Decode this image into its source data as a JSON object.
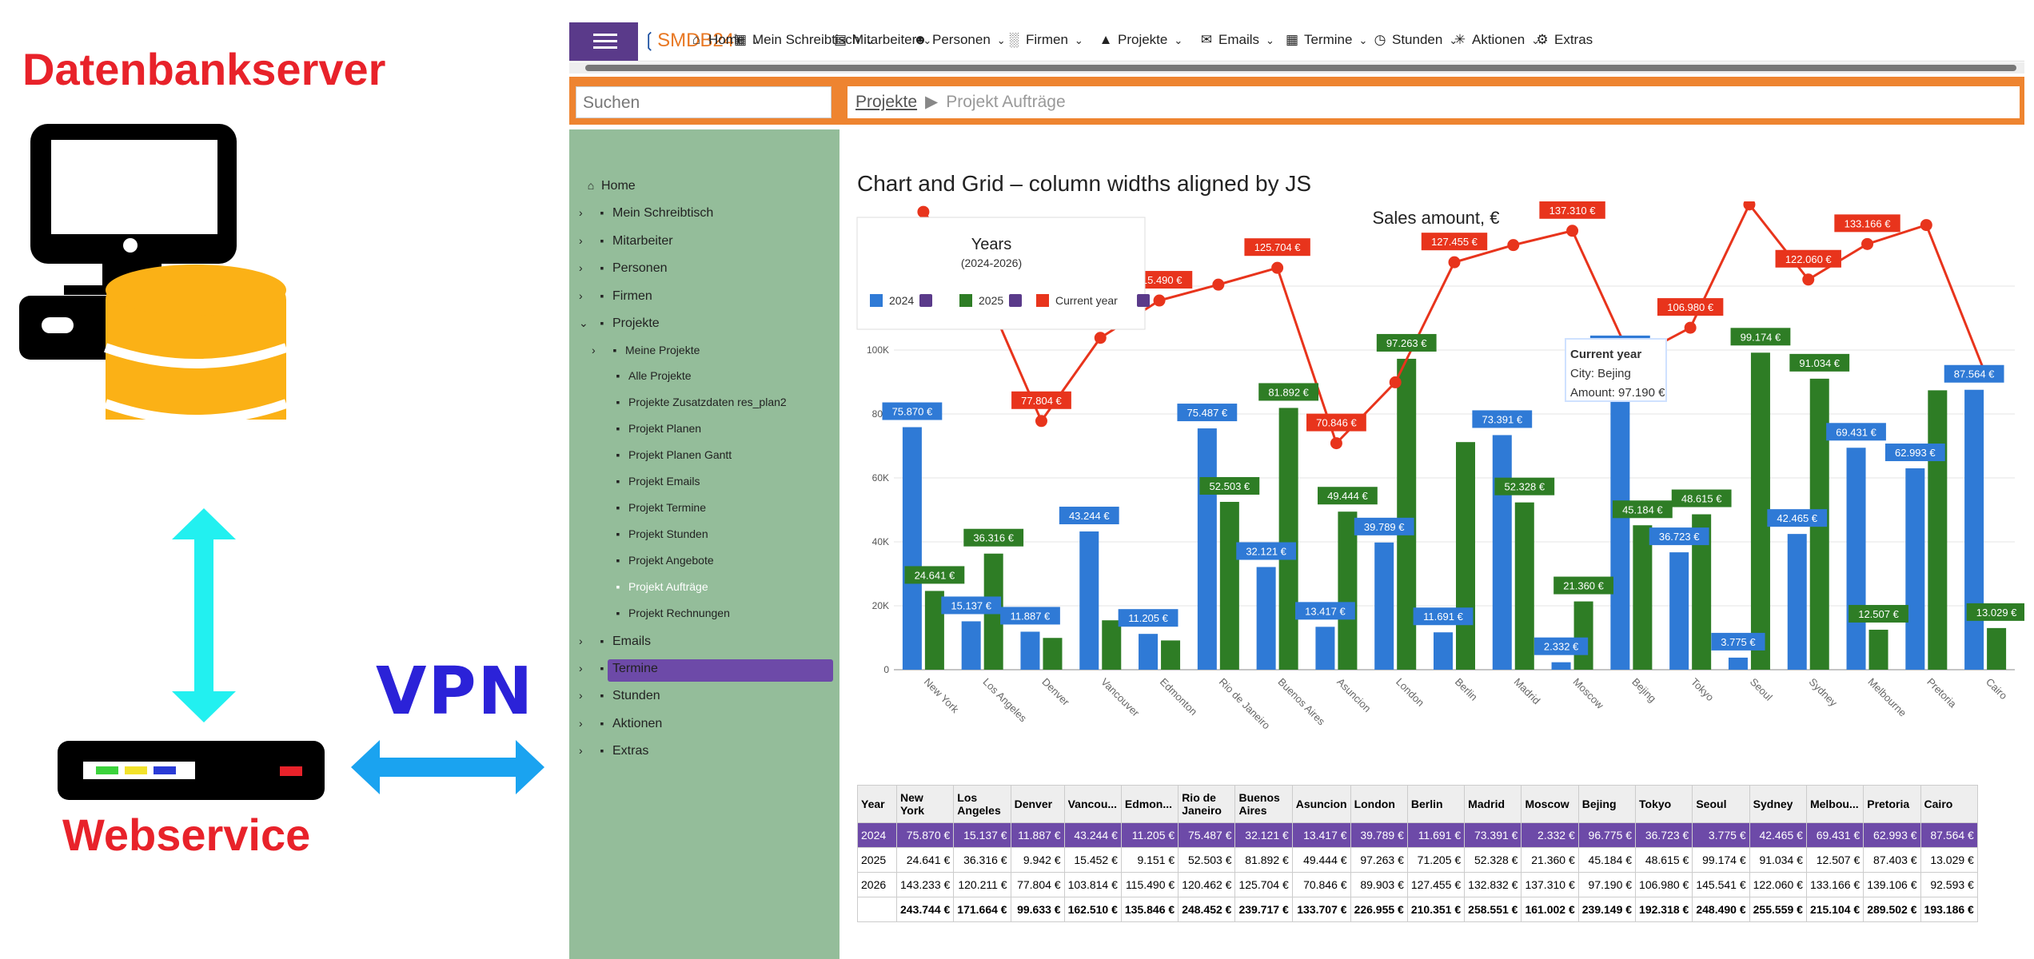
{
  "diagram": {
    "server_label": "Datenbankserver",
    "vpn_label": "VPN",
    "service_label": "Webservice"
  },
  "app": {
    "logo": "SMDB24",
    "nav": [
      {
        "label": "Home",
        "icon": "home-icon"
      },
      {
        "label": "Mein Schreibtisch",
        "icon": "desk-icon"
      },
      {
        "label": "Mitarbeiter",
        "icon": "employee-icon"
      },
      {
        "label": "Personen",
        "icon": "people-icon"
      },
      {
        "label": "Firmen",
        "icon": "factory-icon"
      },
      {
        "label": "Projekte",
        "icon": "project-icon"
      },
      {
        "label": "Emails",
        "icon": "email-icon"
      },
      {
        "label": "Termine",
        "icon": "calendar-icon"
      },
      {
        "label": "Stunden",
        "icon": "clock-icon"
      },
      {
        "label": "Aktionen",
        "icon": "actions-icon"
      },
      {
        "label": "Extras",
        "icon": "gear-icon"
      }
    ],
    "search_placeholder": "Suchen",
    "breadcrumb": [
      "Projekte",
      "Projekt Aufträge"
    ],
    "sidebar": [
      {
        "label": "Home"
      },
      {
        "label": "Mein Schreibtisch"
      },
      {
        "label": "Mitarbeiter"
      },
      {
        "label": "Personen"
      },
      {
        "label": "Firmen"
      },
      {
        "label": "Projekte"
      },
      {
        "label": "Meine Projekte"
      },
      {
        "label": "Alle Projekte"
      },
      {
        "label": "Projekte Zusatzdaten res_plan2"
      },
      {
        "label": "Projekt Planen"
      },
      {
        "label": "Projekt Planen Gantt"
      },
      {
        "label": "Projekt Emails"
      },
      {
        "label": "Projekt Termine"
      },
      {
        "label": "Projekt Stunden"
      },
      {
        "label": "Projekt Angebote"
      },
      {
        "label": "Projekt Aufträge"
      },
      {
        "label": "Projekt Rechnungen"
      },
      {
        "label": "Emails"
      },
      {
        "label": "Termine"
      },
      {
        "label": "Stunden"
      },
      {
        "label": "Aktionen"
      },
      {
        "label": "Extras"
      }
    ],
    "page_title": "Chart and Grid – column widths aligned by JS"
  },
  "chart_data": {
    "type": "bar",
    "title": "Sales amount, €",
    "legend": {
      "title": "Years",
      "subtitle": "(2024-2026)",
      "placement": "top-left"
    },
    "categories": [
      "New York",
      "Los Angeles",
      "Denver",
      "Vancouver",
      "Edmonton",
      "Rio de Janeiro",
      "Buenos Aires",
      "Asuncion",
      "London",
      "Berlin",
      "Madrid",
      "Moscow",
      "Bejing",
      "Tokyo",
      "Seoul",
      "Sydney",
      "Melbourne",
      "Pretoria",
      "Cairo"
    ],
    "ylim": [
      0,
      140000
    ],
    "yticks": [
      "0",
      "20K",
      "40K",
      "60K",
      "80K",
      "100K",
      "120K"
    ],
    "series": [
      {
        "name": "2024",
        "type": "bar",
        "color": "#2f7ad6",
        "values": [
          75870,
          15137,
          11887,
          43244,
          11205,
          75487,
          32121,
          13417,
          39789,
          11691,
          73391,
          2332,
          96775,
          36723,
          3775,
          42465,
          69431,
          62993,
          87564
        ],
        "labels": [
          "75.870 €",
          "15.137 €",
          "11.887 €",
          "43.244 €",
          "11.205 €",
          "75.487 €",
          "32.121 €",
          "13.417 €",
          "39.789 €",
          "11.691 €",
          "73.391 €",
          "2.332 €",
          "96.775 €",
          "36.723 €",
          "3.775 €",
          "42.465 €",
          "69.431 €",
          "62.993 €",
          "87.564 €"
        ]
      },
      {
        "name": "2025",
        "type": "bar",
        "color": "#2e7d25",
        "values": [
          24641,
          36316,
          9942,
          15452,
          9151,
          52503,
          81892,
          49444,
          97263,
          71205,
          52328,
          21360,
          45184,
          48615,
          99174,
          91034,
          12507,
          87403,
          13029
        ],
        "labels": [
          "24.641 €",
          "36.316 €",
          "",
          "",
          "",
          "52.503 €",
          "81.892 €",
          "49.444 €",
          "97.263 €",
          "",
          "52.328 €",
          "21.360 €",
          "45.184 €",
          "48.615 €",
          "99.174 €",
          "91.034 €",
          "12.507 €",
          "",
          "13.029 €"
        ]
      },
      {
        "name": "Current year",
        "type": "line",
        "color": "#e8341c",
        "values": [
          143233,
          120211,
          77804,
          103814,
          115490,
          120462,
          125704,
          70846,
          89903,
          127455,
          132832,
          137310,
          97190,
          106980,
          145541,
          122060,
          133166,
          139106,
          92593
        ],
        "labels": [
          "",
          "120.211 €",
          "77.804 €",
          "103.814 €",
          "115.490 €",
          "",
          "125.704 €",
          "70.846 €",
          "",
          "127.455 €",
          "",
          "137.310 €",
          "",
          "106.980 €",
          "145.541 €",
          "122.060 €",
          "133.166 €",
          "",
          ""
        ]
      }
    ],
    "tooltip": {
      "title": "Current year",
      "city": "City: Bejing",
      "amount": "Amount: 97.190 €"
    }
  },
  "grid": {
    "headers": [
      "Year",
      "New York",
      "Los Angeles",
      "Denver",
      "Vancou...",
      "Edmon...",
      "Rio de Janeiro",
      "Buenos Aires",
      "Asuncion",
      "London",
      "Berlin",
      "Madrid",
      "Moscow",
      "Bejing",
      "Tokyo",
      "Seoul",
      "Sydney",
      "Melbou...",
      "Pretoria",
      "Cairo"
    ],
    "rows": [
      [
        "2024",
        "75.870 €",
        "15.137 €",
        "11.887 €",
        "43.244 €",
        "11.205 €",
        "75.487 €",
        "32.121 €",
        "13.417 €",
        "39.789 €",
        "11.691 €",
        "73.391 €",
        "2.332 €",
        "96.775 €",
        "36.723 €",
        "3.775 €",
        "42.465 €",
        "69.431 €",
        "62.993 €",
        "87.564 €"
      ],
      [
        "2025",
        "24.641 €",
        "36.316 €",
        "9.942 €",
        "15.452 €",
        "9.151 €",
        "52.503 €",
        "81.892 €",
        "49.444 €",
        "97.263 €",
        "71.205 €",
        "52.328 €",
        "21.360 €",
        "45.184 €",
        "48.615 €",
        "99.174 €",
        "91.034 €",
        "12.507 €",
        "87.403 €",
        "13.029 €"
      ],
      [
        "2026",
        "143.233 €",
        "120.211 €",
        "77.804 €",
        "103.814 €",
        "115.490 €",
        "120.462 €",
        "125.704 €",
        "70.846 €",
        "89.903 €",
        "127.455 €",
        "132.832 €",
        "137.310 €",
        "97.190 €",
        "106.980 €",
        "145.541 €",
        "122.060 €",
        "133.166 €",
        "139.106 €",
        "92.593 €"
      ],
      [
        "",
        "243.744 €",
        "171.664 €",
        "99.633 €",
        "162.510 €",
        "135.846 €",
        "248.452 €",
        "239.717 €",
        "133.707 €",
        "226.955 €",
        "210.351 €",
        "258.551 €",
        "161.002 €",
        "239.149 €",
        "192.318 €",
        "248.490 €",
        "255.559 €",
        "215.104 €",
        "289.502 €",
        "193.186 €"
      ]
    ]
  }
}
